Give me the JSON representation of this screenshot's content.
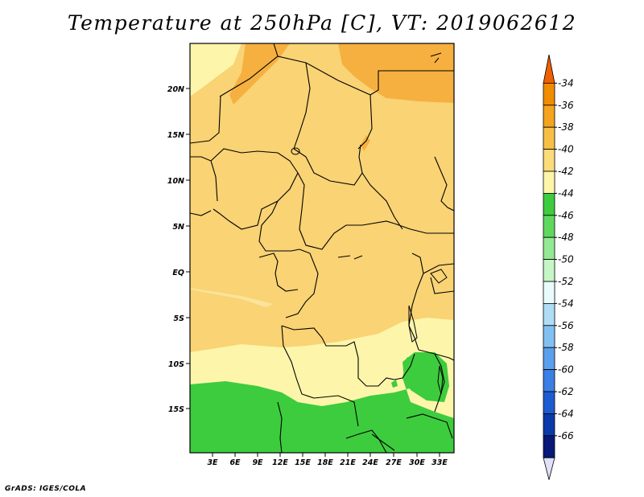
{
  "title": "Temperature at 250hPa [C], VT: 2019062612",
  "credit": "GrADS: IGES/COLA",
  "map": {
    "lat_labels": [
      "20N",
      "15N",
      "10N",
      "5N",
      "EQ",
      "5S",
      "10S",
      "15S"
    ],
    "lon_labels": [
      "3E",
      "6E",
      "9E",
      "12E",
      "15E",
      "18E",
      "21E",
      "24E",
      "27E",
      "30E",
      "33E"
    ]
  },
  "colorbar": {
    "labels": [
      "-34",
      "-36",
      "-38",
      "-40",
      "-42",
      "-44",
      "-46",
      "-48",
      "-50",
      "-52",
      "-54",
      "-56",
      "-58",
      "-60",
      "-62",
      "-64",
      "-66"
    ],
    "colors": [
      "#f06000",
      "#f08c00",
      "#f4a41e",
      "#f7bf46",
      "#fbdb7a",
      "#fdf5aa",
      "#3dcc3d",
      "#5ed95e",
      "#94e994",
      "#c6f5c6",
      "#e9fbfb",
      "#b0dcf6",
      "#82c0f2",
      "#5aa0ec",
      "#3b7fe4",
      "#1c5cd0",
      "#0a3aaa",
      "#081878",
      "#e0e0f8"
    ]
  },
  "colors": {
    "orange": "#f6b040",
    "light_orange": "#f9d374",
    "pale_yellow": "#fdf5aa",
    "green": "#3dcc3d",
    "border": "#000000"
  }
}
